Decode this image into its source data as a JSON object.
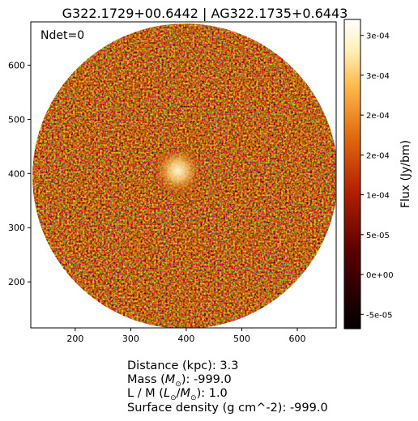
{
  "chart_data": {
    "type": "heatmap",
    "title": "G322.1729+00.6442 | AG322.1735+0.6443",
    "annotation": "Ndet=0",
    "x_ticks": [
      "200",
      "300",
      "400",
      "500",
      "600"
    ],
    "y_ticks": [
      "200",
      "300",
      "400",
      "500",
      "600"
    ],
    "xlim": [
      120,
      670
    ],
    "ylim": [
      115,
      680
    ],
    "colormap": "afmhot",
    "colorbar": {
      "label": "Flux (Jy/bm)",
      "ticks": [
        "-5e-05",
        "0e+00",
        "5e-05",
        "1e-04",
        "2e-04",
        "2e-04",
        "3e-04",
        "3e-04"
      ],
      "tick_values": [
        -5e-05,
        0.0,
        5e-05,
        0.0001,
        0.00015,
        0.0002,
        0.00025,
        0.0003
      ],
      "range": [
        -6.8e-05,
        0.00032
      ]
    },
    "field_of_view": {
      "shape": "circle",
      "center": [
        398,
        395
      ],
      "radius_data": 275
    },
    "emission_peak": {
      "x": 385,
      "y": 405,
      "radius_data": 30
    }
  },
  "caption": {
    "distance_label": "Distance (kpc): ",
    "distance_value": "3.3",
    "mass_label": "Mass (",
    "mass_unit": "M",
    "mass_suffix": "): ",
    "mass_value": "-999.0",
    "lm_label": "L / M (",
    "lm_unit_l": "L",
    "lm_unit_m": "M",
    "lm_suffix": "): ",
    "lm_value": "1.0",
    "surface_label": "Surface density (g cm^-2): ",
    "surface_value": "-999.0"
  }
}
